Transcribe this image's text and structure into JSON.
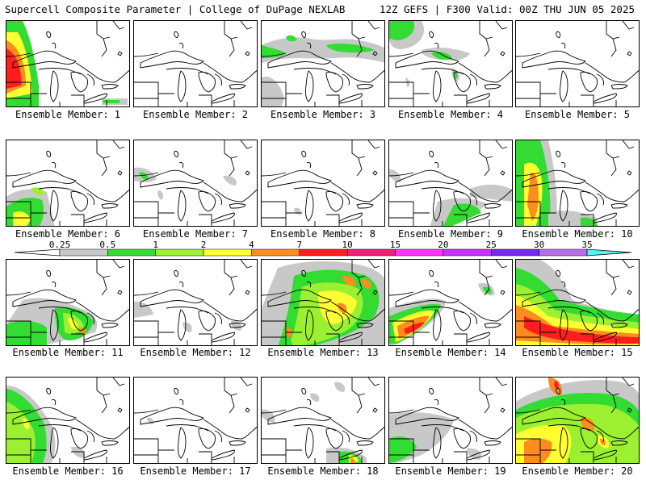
{
  "header": {
    "title_left": "Supercell Composite Parameter | College of DuPage NEXLAB",
    "title_right": "12Z GEFS | F300 Valid: 00Z THU JUN 05 2025"
  },
  "panels": [
    {
      "member": 1,
      "label": "Ensemble Member: 1"
    },
    {
      "member": 2,
      "label": "Ensemble Member: 2"
    },
    {
      "member": 3,
      "label": "Ensemble Member: 3"
    },
    {
      "member": 4,
      "label": "Ensemble Member: 4"
    },
    {
      "member": 5,
      "label": "Ensemble Member: 5"
    },
    {
      "member": 6,
      "label": "Ensemble Member: 6"
    },
    {
      "member": 7,
      "label": "Ensemble Member: 7"
    },
    {
      "member": 8,
      "label": "Ensemble Member: 8"
    },
    {
      "member": 9,
      "label": "Ensemble Member: 9"
    },
    {
      "member": 10,
      "label": "Ensemble Member: 10"
    },
    {
      "member": 11,
      "label": "Ensemble Member: 11"
    },
    {
      "member": 12,
      "label": "Ensemble Member: 12"
    },
    {
      "member": 13,
      "label": "Ensemble Member: 13"
    },
    {
      "member": 14,
      "label": "Ensemble Member: 14"
    },
    {
      "member": 15,
      "label": "Ensemble Member: 15"
    },
    {
      "member": 16,
      "label": "Ensemble Member: 16"
    },
    {
      "member": 17,
      "label": "Ensemble Member: 17"
    },
    {
      "member": 18,
      "label": "Ensemble Member: 18"
    },
    {
      "member": 19,
      "label": "Ensemble Member: 19"
    },
    {
      "member": 20,
      "label": "Ensemble Member: 20"
    }
  ],
  "colorbar": {
    "ticks": [
      "0.25",
      "0.5",
      "1",
      "2",
      "4",
      "7",
      "10",
      "15",
      "20",
      "25",
      "30",
      "35"
    ],
    "colors": [
      "#c8c8c8",
      "#32dc32",
      "#9bf032",
      "#ffff32",
      "#ff8c1e",
      "#ff1e1e",
      "#f01e78",
      "#ff32ff",
      "#c832ff",
      "#7828f0",
      "#b46ee6",
      "#5af0f0"
    ]
  },
  "colors": {
    "gray": "#c8c8c8",
    "green": "#32dc32",
    "lightgreen": "#9bf032",
    "yellow": "#ffff32",
    "orange": "#ff8c1e",
    "red": "#ff1e1e"
  }
}
